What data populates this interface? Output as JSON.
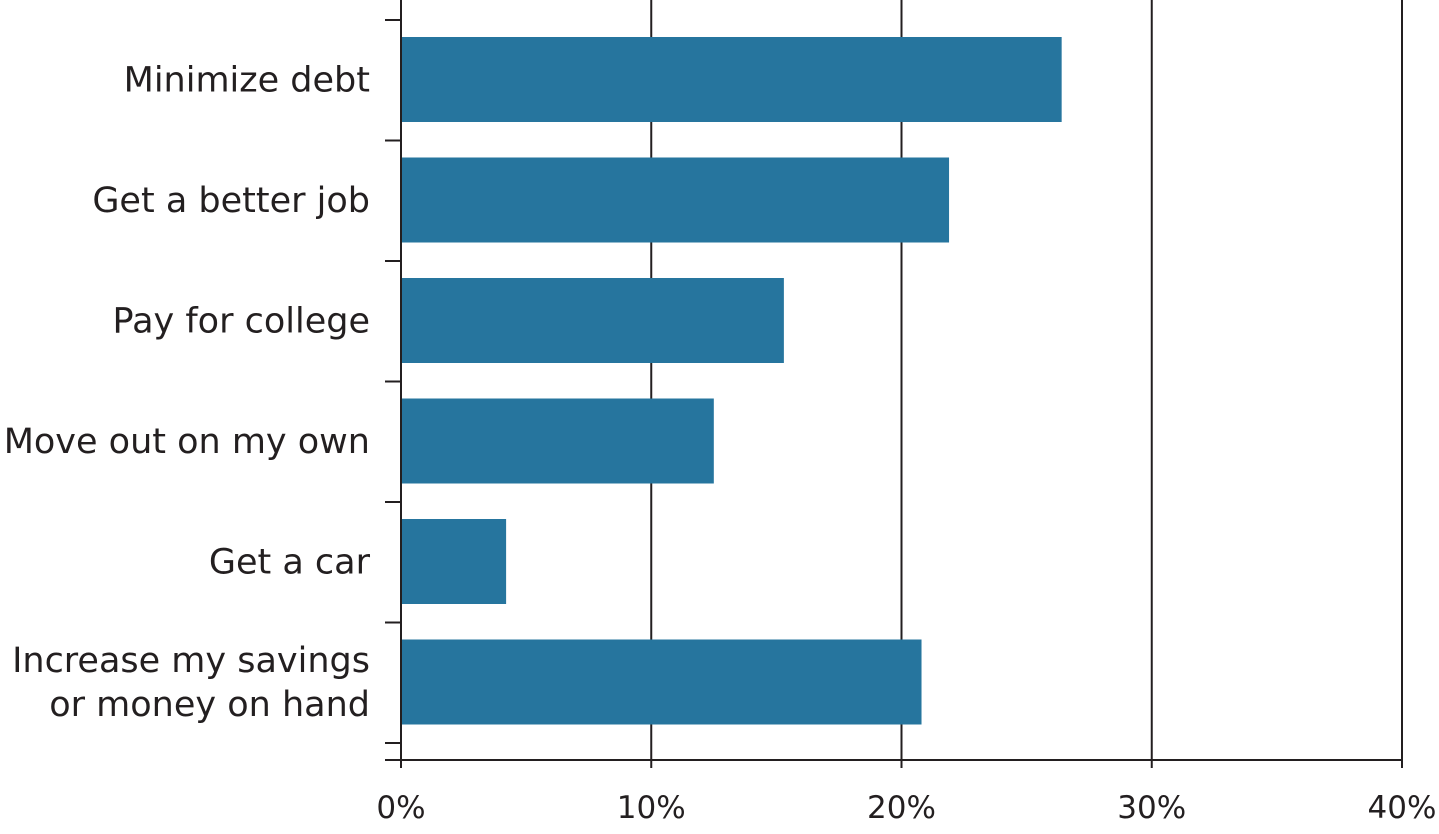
{
  "chart_data": {
    "type": "bar",
    "orientation": "horizontal",
    "categories": [
      [
        "Minimize debt"
      ],
      [
        "Get a better job"
      ],
      [
        "Pay for college"
      ],
      [
        "Move out on my own"
      ],
      [
        "Get a car"
      ],
      [
        "Increase my savings",
        "or money on hand"
      ]
    ],
    "values": [
      26.4,
      21.9,
      15.3,
      12.5,
      4.2,
      20.8
    ],
    "value_unit": "%",
    "xlim": [
      0,
      40
    ],
    "x_ticks": [
      0,
      10,
      20,
      30,
      40
    ],
    "x_tick_labels": [
      "0%",
      "10%",
      "20%",
      "30%",
      "40%"
    ],
    "title": "",
    "xlabel": "",
    "ylabel": "",
    "grid": "vertical",
    "legend": "none",
    "bar_color": "#26759e",
    "text_color": "#231f20"
  }
}
